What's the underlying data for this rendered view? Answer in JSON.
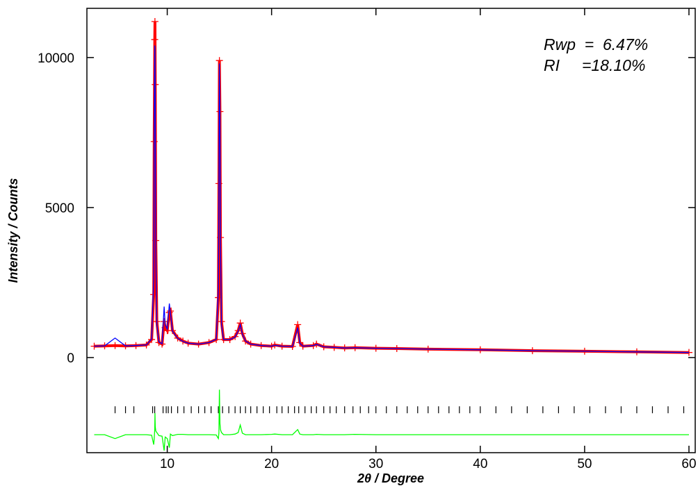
{
  "chart_data": {
    "type": "line",
    "x_label": "2θ / Degree",
    "y_label": "Intensity / Counts",
    "annotations": [
      "Rwp  =  6.47%",
      "RI     =18.10%"
    ],
    "x": [
      3,
      4,
      5,
      6,
      7,
      8,
      8.5,
      8.7,
      8.75,
      8.8,
      8.82,
      8.85,
      8.9,
      9,
      9.2,
      9.5,
      9.7,
      9.8,
      10,
      10.2,
      10.3,
      10.5,
      11,
      11.5,
      12,
      13,
      14,
      14.7,
      14.9,
      14.95,
      15,
      15.05,
      15.1,
      15.2,
      15.4,
      16,
      16.5,
      16.8,
      17,
      17.2,
      17.5,
      18,
      19,
      20,
      20.3,
      21,
      22,
      22.5,
      22.7,
      23,
      24,
      24.3,
      25,
      26,
      27,
      28,
      30,
      32,
      35,
      40,
      45,
      50,
      55,
      60
    ],
    "series": [
      {
        "color": "#ff0000",
        "marker": "cross",
        "values": [
          380,
          390,
          400,
          390,
          400,
          420,
          600,
          2100,
          7200,
          10600,
          11200,
          9100,
          3900,
          1200,
          500,
          450,
          1200,
          1000,
          900,
          1500,
          1550,
          900,
          650,
          550,
          480,
          450,
          500,
          600,
          2000,
          5800,
          9900,
          8200,
          4000,
          1200,
          600,
          600,
          700,
          900,
          1150,
          800,
          550,
          450,
          400,
          380,
          420,
          380,
          370,
          1100,
          500,
          380,
          400,
          450,
          360,
          340,
          320,
          330,
          310,
          300,
          280,
          260,
          230,
          210,
          190,
          170
        ]
      },
      {
        "color": "#0000ff",
        "values": [
          380,
          390,
          650,
          390,
          400,
          420,
          620,
          2600,
          7500,
          10400,
          10300,
          8800,
          3500,
          1100,
          520,
          460,
          1700,
          1100,
          950,
          1800,
          1500,
          880,
          640,
          540,
          480,
          450,
          500,
          610,
          2300,
          6000,
          9800,
          8000,
          3800,
          1100,
          600,
          600,
          680,
          880,
          1100,
          780,
          550,
          450,
          400,
          380,
          410,
          380,
          370,
          1000,
          480,
          380,
          400,
          440,
          360,
          340,
          320,
          330,
          310,
          300,
          280,
          260,
          230,
          210,
          190,
          170
        ]
      },
      {
        "color": "#00ff00",
        "values": [
          -2570,
          -2570,
          -2700,
          -2570,
          -2570,
          -2570,
          -2590,
          -2900,
          -2700,
          -2400,
          -1850,
          -2300,
          -2450,
          -2500,
          -2600,
          -2620,
          -3100,
          -2650,
          -2700,
          -3000,
          -2550,
          -2600,
          -2560,
          -2560,
          -2570,
          -2570,
          -2570,
          -2580,
          -2700,
          -2500,
          -1070,
          -2200,
          -2400,
          -2500,
          -2570,
          -2570,
          -2550,
          -2500,
          -2250,
          -2520,
          -2570,
          -2570,
          -2570,
          -2560,
          -2550,
          -2570,
          -2570,
          -2400,
          -2550,
          -2570,
          -2570,
          -2560,
          -2570,
          -2570,
          -2570,
          -2560,
          -2570,
          -2570,
          -2570,
          -2570,
          -2570,
          -2570,
          -2570,
          -2570
        ]
      }
    ],
    "reflections": {
      "color": "#000000",
      "x": [
        5,
        6,
        6.8,
        8.6,
        8.8,
        9.6,
        9.9,
        10.1,
        10.4,
        11,
        11.6,
        12.3,
        13,
        13.6,
        14.2,
        14.9,
        15.3,
        15.9,
        16.5,
        17,
        17.5,
        18,
        18.6,
        19.2,
        19.8,
        20.5,
        21,
        21.6,
        22.2,
        22.6,
        23.2,
        23.8,
        24.3,
        25,
        25.6,
        26.2,
        27,
        27.8,
        28.5,
        29.3,
        30,
        31,
        32,
        33,
        34,
        35,
        36,
        37,
        38,
        39,
        40,
        41.5,
        43,
        44.5,
        46,
        47.5,
        49,
        50.5,
        52,
        53.5,
        55,
        56.5,
        58,
        59.5
      ],
      "values": [
        -1740,
        -1740,
        -1740,
        -1740,
        -1740,
        -1740,
        -1740,
        -1740,
        -1740,
        -1740,
        -1740,
        -1740,
        -1740,
        -1740,
        -1740,
        -1740,
        -1740,
        -1740,
        -1740,
        -1740,
        -1740,
        -1740,
        -1740,
        -1740,
        -1740,
        -1740,
        -1740,
        -1740,
        -1740,
        -1740,
        -1740,
        -1740,
        -1740,
        -1740,
        -1740,
        -1740,
        -1740,
        -1740,
        -1740,
        -1740,
        -1740,
        -1740,
        -1740,
        -1740,
        -1740,
        -1740,
        -1740,
        -1740,
        -1740,
        -1740,
        -1740,
        -1740,
        -1740,
        -1740,
        -1740,
        -1740,
        -1740,
        -1740,
        -1740,
        -1740,
        -1740,
        -1740,
        -1740,
        -1740
      ]
    },
    "xlim": [
      2.3,
      60.6
    ],
    "ylim": [
      -3170,
      11640
    ],
    "xticks": [
      10,
      20,
      30,
      40,
      50,
      60
    ],
    "yticks": [
      0,
      5000,
      10000
    ]
  }
}
